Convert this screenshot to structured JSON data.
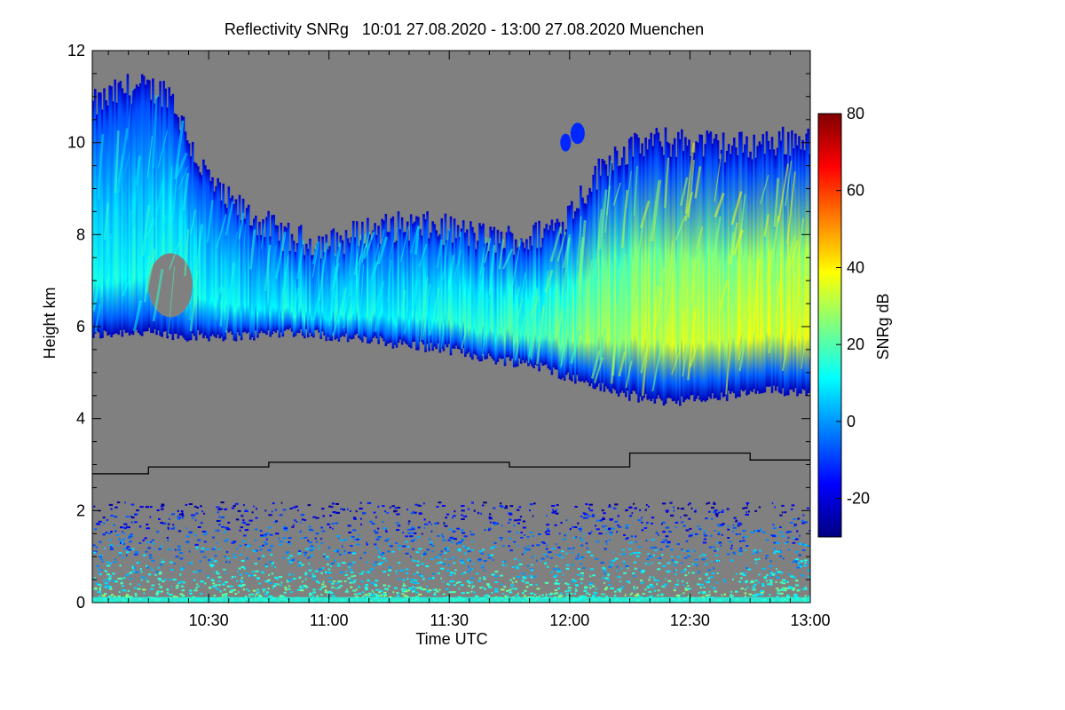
{
  "chart_data": {
    "type": "heatmap",
    "title": "Reflectivity SNRg   10:01 27.08.2020 - 13:00 27.08.2020 Muenchen",
    "xlabel": "Time UTC",
    "ylabel": "Height km",
    "xlim_minutes_of_day": [
      601,
      780
    ],
    "ylim_km": [
      0,
      12
    ],
    "x_ticks": [
      {
        "minute": 630,
        "label": "10:30"
      },
      {
        "minute": 660,
        "label": "11:00"
      },
      {
        "minute": 690,
        "label": "11:30"
      },
      {
        "minute": 720,
        "label": "12:00"
      },
      {
        "minute": 750,
        "label": "12:30"
      },
      {
        "minute": 780,
        "label": "13:00"
      }
    ],
    "y_ticks": [
      {
        "value": 0,
        "label": "0"
      },
      {
        "value": 2,
        "label": "2"
      },
      {
        "value": 4,
        "label": "4"
      },
      {
        "value": 6,
        "label": "6"
      },
      {
        "value": 8,
        "label": "8"
      },
      {
        "value": 10,
        "label": "10"
      },
      {
        "value": 12,
        "label": "12"
      }
    ],
    "colorbar": {
      "label": "SNRg dB",
      "range_db": [
        -30,
        80
      ],
      "ticks": [
        {
          "value": -20,
          "label": "-20"
        },
        {
          "value": 0,
          "label": "0"
        },
        {
          "value": 20,
          "label": "20"
        },
        {
          "value": 40,
          "label": "40"
        },
        {
          "value": 60,
          "label": "60"
        },
        {
          "value": 80,
          "label": "80"
        }
      ]
    },
    "cloud_layer": {
      "top_km": [
        [
          601,
          10.8
        ],
        [
          610,
          11.2
        ],
        [
          620,
          11.1
        ],
        [
          627,
          9.6
        ],
        [
          633,
          8.8
        ],
        [
          640,
          8.4
        ],
        [
          650,
          7.9
        ],
        [
          660,
          7.8
        ],
        [
          670,
          8.1
        ],
        [
          680,
          8.2
        ],
        [
          690,
          8.1
        ],
        [
          700,
          7.9
        ],
        [
          710,
          7.9
        ],
        [
          718,
          8.3
        ],
        [
          724,
          9.0
        ],
        [
          730,
          9.7
        ],
        [
          740,
          10.0
        ],
        [
          750,
          10.0
        ],
        [
          760,
          9.9
        ],
        [
          770,
          10.0
        ],
        [
          780,
          10.1
        ]
      ],
      "base_km": [
        [
          601,
          5.8
        ],
        [
          610,
          5.9
        ],
        [
          620,
          5.8
        ],
        [
          630,
          5.8
        ],
        [
          640,
          5.8
        ],
        [
          650,
          5.9
        ],
        [
          660,
          5.8
        ],
        [
          670,
          5.7
        ],
        [
          680,
          5.6
        ],
        [
          690,
          5.5
        ],
        [
          700,
          5.3
        ],
        [
          710,
          5.2
        ],
        [
          720,
          4.9
        ],
        [
          730,
          4.6
        ],
        [
          740,
          4.4
        ],
        [
          750,
          4.4
        ],
        [
          760,
          4.5
        ],
        [
          770,
          4.6
        ],
        [
          780,
          4.6
        ]
      ],
      "core_snr_db": [
        [
          601,
          8
        ],
        [
          620,
          10
        ],
        [
          640,
          6
        ],
        [
          660,
          8
        ],
        [
          680,
          9
        ],
        [
          700,
          12
        ],
        [
          720,
          20
        ],
        [
          740,
          28
        ],
        [
          760,
          30
        ],
        [
          780,
          32
        ]
      ]
    },
    "boundary_layer_top_km": 1.6,
    "black_line_km": [
      [
        601,
        2.8
      ],
      [
        615,
        2.8
      ],
      [
        615,
        2.95
      ],
      [
        645,
        2.95
      ],
      [
        645,
        3.05
      ],
      [
        705,
        3.05
      ],
      [
        705,
        2.95
      ],
      [
        735,
        2.95
      ],
      [
        735,
        3.25
      ],
      [
        765,
        3.25
      ],
      [
        765,
        3.1
      ],
      [
        780,
        3.1
      ]
    ],
    "background_color": "#808080",
    "colormap": [
      "#00007f",
      "#0000ff",
      "#007fff",
      "#00ffff",
      "#7fff7f",
      "#ffff00",
      "#ff7f00",
      "#ff0000",
      "#7f0000"
    ]
  }
}
